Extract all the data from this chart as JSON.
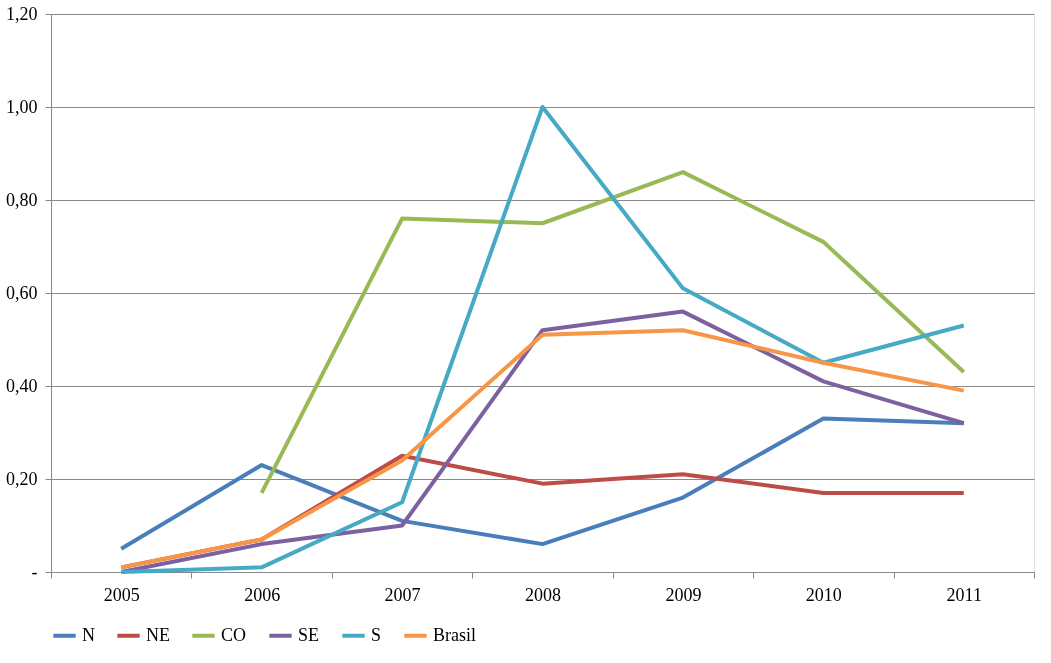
{
  "chart_data": {
    "type": "line",
    "categories": [
      "2005",
      "2006",
      "2007",
      "2008",
      "2009",
      "2010",
      "2011"
    ],
    "series": [
      {
        "name": "N",
        "color": "#4a7ebb",
        "values": [
          0.05,
          0.23,
          0.11,
          0.06,
          0.16,
          0.33,
          0.32
        ]
      },
      {
        "name": "NE",
        "color": "#be4b48",
        "values": [
          0.01,
          0.07,
          0.25,
          0.19,
          0.21,
          0.17,
          0.17
        ]
      },
      {
        "name": "CO",
        "color": "#98b954",
        "values": [
          null,
          0.17,
          0.76,
          0.75,
          0.86,
          0.71,
          0.43
        ]
      },
      {
        "name": "SE",
        "color": "#7d60a0",
        "values": [
          0.0,
          0.06,
          0.1,
          0.52,
          0.56,
          0.41,
          0.32
        ]
      },
      {
        "name": "S",
        "color": "#46aac5",
        "values": [
          0.0,
          0.01,
          0.15,
          1.0,
          0.61,
          0.45,
          0.53
        ]
      },
      {
        "name": "Brasil",
        "color": "#f79646",
        "values": [
          0.01,
          0.07,
          0.24,
          0.51,
          0.52,
          0.45,
          0.39
        ]
      }
    ],
    "ylim": [
      0,
      1.2
    ],
    "yticks": [
      {
        "value": 0,
        "label": "-"
      },
      {
        "value": 0.2,
        "label": "0,20"
      },
      {
        "value": 0.4,
        "label": "0,40"
      },
      {
        "value": 0.6,
        "label": "0,60"
      },
      {
        "value": 0.8,
        "label": "0,80"
      },
      {
        "value": 1.0,
        "label": "1,00"
      },
      {
        "value": 1.2,
        "label": "1,20"
      }
    ],
    "grid": "y",
    "legend": "bottom",
    "marker": "none",
    "line_style": "solid"
  }
}
